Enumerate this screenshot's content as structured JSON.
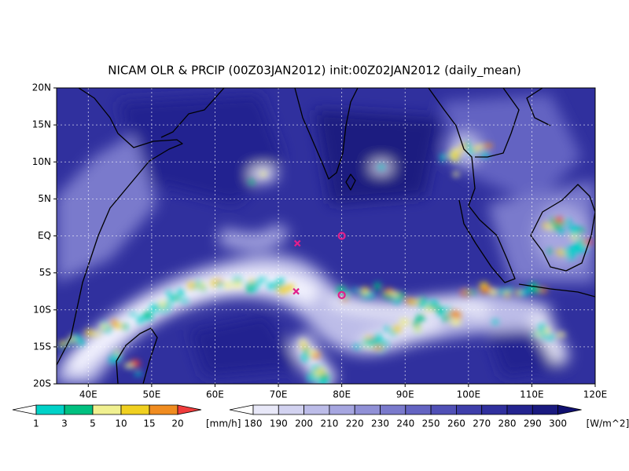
{
  "title": "NICAM OLR & PRCIP (00Z03JAN2012) init:00Z02JAN2012 (daily_mean)",
  "map": {
    "lon_range": [
      35,
      120
    ],
    "lat_range": [
      -20,
      20
    ],
    "lon_ticks": [
      {
        "value": 40,
        "label": "40E"
      },
      {
        "value": 50,
        "label": "50E"
      },
      {
        "value": 60,
        "label": "60E"
      },
      {
        "value": 70,
        "label": "70E"
      },
      {
        "value": 80,
        "label": "80E"
      },
      {
        "value": 90,
        "label": "90E"
      },
      {
        "value": 100,
        "label": "100E"
      },
      {
        "value": 110,
        "label": "110E"
      },
      {
        "value": 120,
        "label": "120E"
      }
    ],
    "lat_ticks": [
      {
        "value": 20,
        "label": "20N"
      },
      {
        "value": 15,
        "label": "15N"
      },
      {
        "value": 10,
        "label": "10N"
      },
      {
        "value": 5,
        "label": "5N"
      },
      {
        "value": 0,
        "label": "EQ"
      },
      {
        "value": -5,
        "label": "5S"
      },
      {
        "value": -10,
        "label": "10S"
      },
      {
        "value": -15,
        "label": "15S"
      },
      {
        "value": -20,
        "label": "20S"
      }
    ],
    "marker_color": "#e0208c",
    "markers": [
      {
        "shape": "x",
        "lon": 73,
        "lat": -1
      },
      {
        "shape": "x",
        "lon": 72.8,
        "lat": -7.5
      },
      {
        "shape": "circle",
        "lon": 80,
        "lat": 0
      },
      {
        "shape": "circle",
        "lon": 80,
        "lat": -8
      }
    ]
  },
  "precip_colorbar": {
    "levels": [
      1,
      3,
      5,
      10,
      15,
      20
    ],
    "unit": "[mm/h]",
    "colors": [
      "#ffffff",
      "#00d2c8",
      "#00c080",
      "#f0f090",
      "#f0d020",
      "#f08c20",
      "#f03c3c"
    ]
  },
  "olr_colorbar": {
    "levels": [
      180,
      190,
      200,
      210,
      220,
      230,
      240,
      250,
      260,
      270,
      280,
      290,
      300
    ],
    "unit": "[W/m^2]",
    "colors": [
      "#ffffff",
      "#e8e8f8",
      "#d2d2f0",
      "#bcbce8",
      "#a6a6e0",
      "#9090d6",
      "#7a7acc",
      "#6464c2",
      "#5050b6",
      "#3e3eaa",
      "#30309e",
      "#242490",
      "#1a1a80",
      "#101070"
    ]
  }
}
